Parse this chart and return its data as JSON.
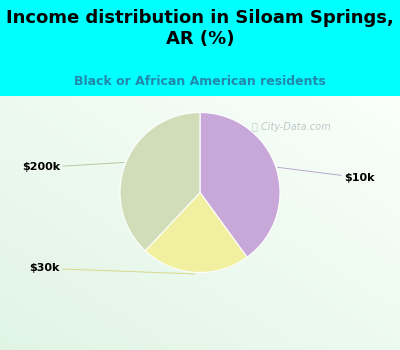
{
  "title": "Income distribution in Siloam Springs,\nAR (%)",
  "subtitle": "Black or African American residents",
  "slices": [
    {
      "label": "$10k",
      "value": 40,
      "color": "#C8A8D8"
    },
    {
      "label": "$30k",
      "value": 22,
      "color": "#F0F0A0"
    },
    {
      "label": "$200k",
      "value": 38,
      "color": "#D0DDB8"
    }
  ],
  "startangle": 90,
  "top_bg_color": "#00FFFF",
  "title_color": "#000000",
  "subtitle_color": "#2288AA",
  "watermark_color": "#A8B8C0",
  "title_fontsize": 13,
  "subtitle_fontsize": 9,
  "label_fontsize": 8
}
